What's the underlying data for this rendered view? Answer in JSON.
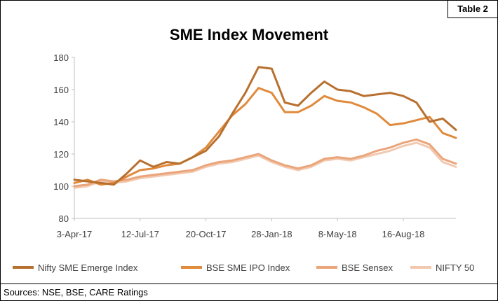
{
  "table_label": "Table 2",
  "source": "Sources: NSE, BSE, CARE Ratings",
  "colors": {
    "nifty_sme": "#b8702f",
    "bse_sme": "#e08a3c",
    "bse_sensex": "#eaa57a",
    "nifty_50": "#f2c9b0"
  },
  "chart_data": {
    "type": "line",
    "title": "SME Index Movement",
    "xlabel": "",
    "ylabel": "",
    "ylim": [
      80,
      180
    ],
    "yticks": [
      80,
      100,
      120,
      140,
      160,
      180
    ],
    "xticks": [
      "3-Apr-17",
      "12-Jul-17",
      "20-Oct-17",
      "28-Jan-18",
      "8-May-18",
      "16-Aug-18"
    ],
    "x": [
      "3-Apr-17",
      "23-Apr-17",
      "13-May-17",
      "2-Jun-17",
      "22-Jun-17",
      "12-Jul-17",
      "1-Aug-17",
      "21-Aug-17",
      "10-Sep-17",
      "30-Sep-17",
      "20-Oct-17",
      "9-Nov-17",
      "29-Nov-17",
      "19-Dec-17",
      "8-Jan-18",
      "28-Jan-18",
      "17-Feb-18",
      "9-Mar-18",
      "29-Mar-18",
      "18-Apr-18",
      "8-May-18",
      "28-May-18",
      "17-Jun-18",
      "7-Jul-18",
      "27-Jul-18",
      "16-Aug-18",
      "5-Sep-18",
      "25-Sep-18",
      "15-Oct-18",
      "4-Nov-18"
    ],
    "grid": false,
    "legend_position": "bottom",
    "series": [
      {
        "name": "Nifty SME Emerge Index",
        "color_key": "nifty_sme",
        "values": [
          104,
          103,
          102,
          101,
          108,
          116,
          112,
          115,
          114,
          118,
          122,
          131,
          145,
          158,
          174,
          173,
          152,
          150,
          158,
          165,
          160,
          159,
          156,
          157,
          158,
          156,
          152,
          140,
          142,
          135
        ]
      },
      {
        "name": "BSE SME IPO Index",
        "color_key": "bse_sme",
        "values": [
          102,
          104,
          101,
          102,
          106,
          110,
          111,
          113,
          114,
          118,
          124,
          134,
          144,
          151,
          161,
          158,
          146,
          146,
          150,
          156,
          153,
          152,
          149,
          145,
          138,
          139,
          141,
          143,
          133,
          130
        ]
      },
      {
        "name": "BSE Sensex",
        "color_key": "bse_sensex",
        "values": [
          100,
          101,
          104,
          103,
          104,
          106,
          107,
          108,
          109,
          110,
          113,
          115,
          116,
          118,
          120,
          116,
          113,
          111,
          113,
          117,
          118,
          117,
          119,
          122,
          124,
          127,
          129,
          126,
          117,
          114
        ]
      },
      {
        "name": "NIFTY 50",
        "color_key": "nifty_50",
        "values": [
          99,
          100,
          103,
          102,
          103,
          105,
          106,
          107,
          108,
          109,
          112,
          114,
          115,
          117,
          119,
          115,
          112,
          110,
          112,
          116,
          117,
          116,
          118,
          120,
          122,
          125,
          127,
          124,
          115,
          112
        ]
      }
    ]
  }
}
